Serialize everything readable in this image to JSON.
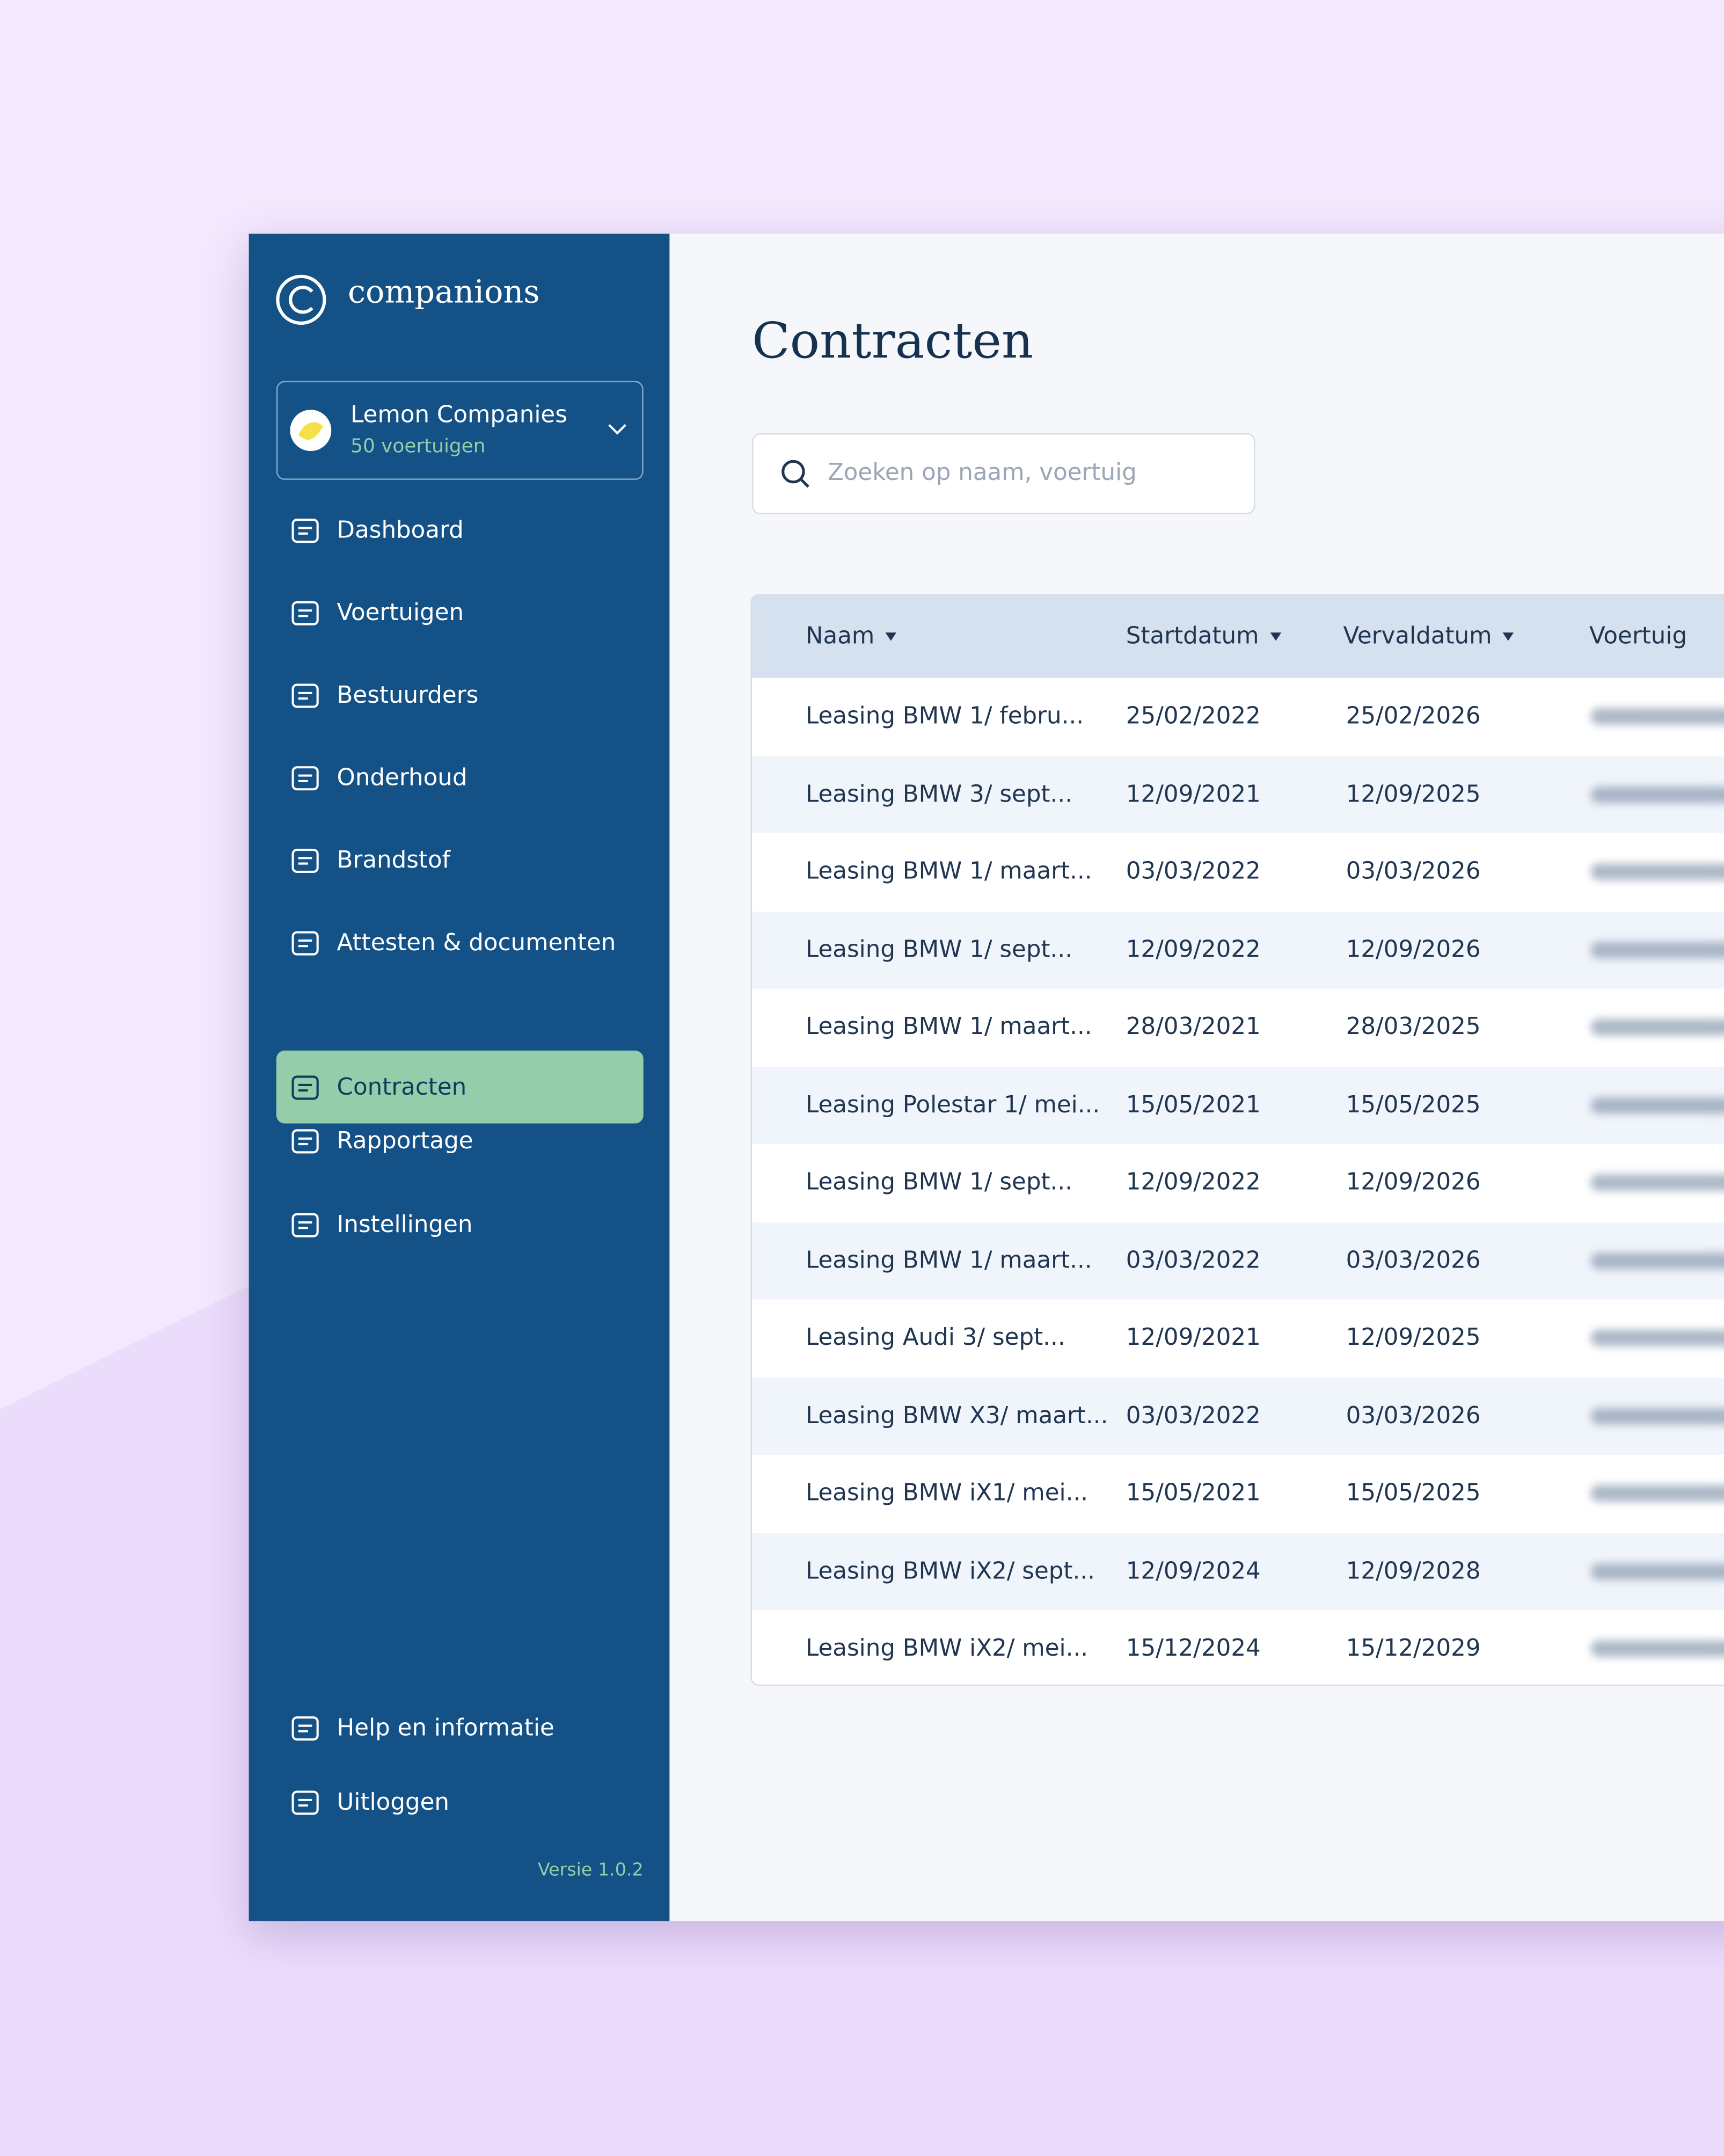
{
  "sidebar": {
    "brand": "companions",
    "account": {
      "name": "Lemon Companies",
      "subtitle": "50 voertuigen"
    },
    "nav": [
      "Dashboard",
      "Voertuigen",
      "Bestuurders",
      "Onderhoud",
      "Brandstof",
      "Attesten & documenten",
      "Contracten",
      "Rapportage",
      "Instellingen"
    ],
    "active": 6,
    "footer": [
      "Help en informatie",
      "Uitloggen"
    ],
    "version": "Versie 1.0.2"
  },
  "header": {
    "title": "Contracten"
  },
  "search": {
    "placeholder": "Zoeken op naam, voertuig"
  },
  "table": {
    "columns": [
      "Naam",
      "Startdatum",
      "Vervaldatum",
      "Voertuig"
    ],
    "rows": [
      [
        "Leasing BMW 1/ febru...",
        "25/02/2022",
        "25/02/2026"
      ],
      [
        "Leasing BMW 3/ sept...",
        "12/09/2021",
        "12/09/2025"
      ],
      [
        "Leasing BMW 1/ maart...",
        "03/03/2022",
        "03/03/2026"
      ],
      [
        "Leasing BMW 1/ sept...",
        "12/09/2022",
        "12/09/2026"
      ],
      [
        "Leasing BMW 1/ maart...",
        "28/03/2021",
        "28/03/2025"
      ],
      [
        "Leasing Polestar 1/ mei...",
        "15/05/2021",
        "15/05/2025"
      ],
      [
        "Leasing BMW 1/ sept...",
        "12/09/2022",
        "12/09/2026"
      ],
      [
        "Leasing BMW 1/ maart...",
        "03/03/2022",
        "03/03/2026"
      ],
      [
        "Leasing Audi 3/ sept...",
        "12/09/2021",
        "12/09/2025"
      ],
      [
        "Leasing BMW X3/ maart...",
        "03/03/2022",
        "03/03/2026"
      ],
      [
        "Leasing BMW iX1/ mei...",
        "15/05/2021",
        "15/05/2025"
      ],
      [
        "Leasing BMW iX2/ sept...",
        "12/09/2024",
        "12/09/2028"
      ],
      [
        "Leasing BMW iX2/ mei...",
        "15/12/2024",
        "15/12/2029"
      ]
    ]
  }
}
